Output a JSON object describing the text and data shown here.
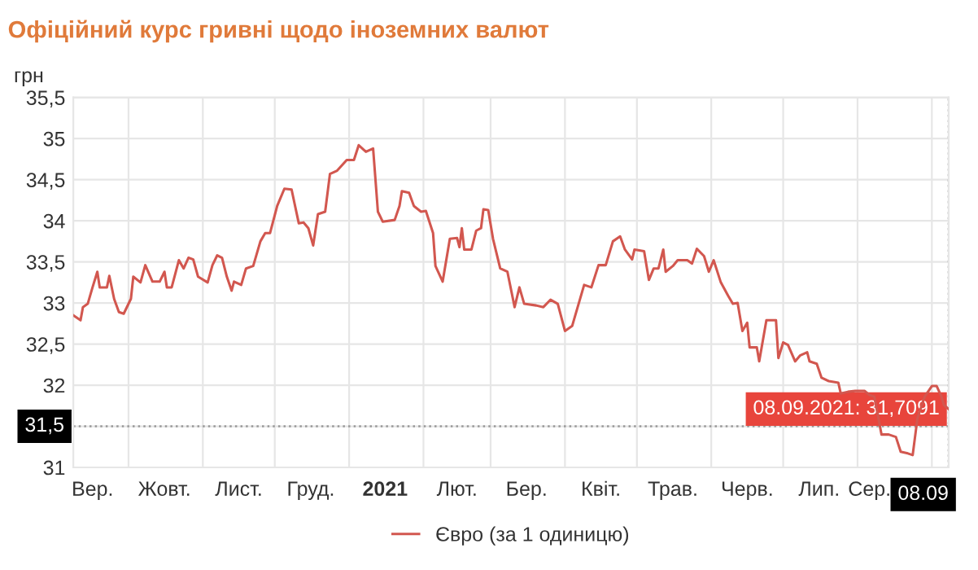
{
  "chart_data": {
    "type": "line",
    "title": "Офіційний курс гривні щодо іноземних валют",
    "ylabel": "грн",
    "xlim": [
      "2020-09-08",
      "2021-09-08"
    ],
    "ylim": [
      31,
      35.5
    ],
    "yticks": [
      31,
      {
        "value": 31.5,
        "label": "31,5"
      },
      32,
      {
        "value": 32.5,
        "label": "32,5"
      },
      33,
      {
        "value": 33.5,
        "label": "33,5"
      },
      34,
      {
        "value": 34.5,
        "label": "34,5"
      },
      35,
      {
        "value": 35.5,
        "label": "35,5"
      }
    ],
    "xticks": [
      {
        "value": "2020-10-01",
        "label": null
      },
      {
        "value": "2020-11-01",
        "label": null
      },
      {
        "value": "2020-12-01",
        "label": null
      },
      {
        "value": "2021-01-01",
        "label": null
      },
      {
        "value": "2021-02-01",
        "label": null
      },
      {
        "value": "2021-03-01",
        "label": null
      },
      {
        "value": "2021-04-01",
        "label": null
      },
      {
        "value": "2021-05-01",
        "label": null
      },
      {
        "value": "2021-06-01",
        "label": null
      },
      {
        "value": "2021-07-01",
        "label": null
      },
      {
        "value": "2021-08-01",
        "label": null
      },
      {
        "value": "2021-09-01",
        "label": null
      },
      {
        "value": "2020-09-16",
        "label": "Вер."
      },
      {
        "value": "2020-10-16",
        "label": "Жовт."
      },
      {
        "value": "2020-11-16",
        "label": "Лист."
      },
      {
        "value": "2020-12-16",
        "label": "Груд."
      },
      {
        "value": "2021-01-16",
        "label": "2021"
      },
      {
        "value": "2021-02-15",
        "label": "Лют."
      },
      {
        "value": "2021-03-16",
        "label": "Бер."
      },
      {
        "value": "2021-04-16",
        "label": "Квіт."
      },
      {
        "value": "2021-05-16",
        "label": "Трав."
      },
      {
        "value": "2021-06-16",
        "label": "Черв."
      },
      {
        "value": "2021-07-16",
        "label": "Лип."
      },
      {
        "value": "2021-08-06",
        "label": "Сер."
      },
      {
        "value": "2021-09-08",
        "label": "08.09"
      }
    ],
    "grid": true,
    "legend": "bottom",
    "marker": "none",
    "line_style": "solid",
    "series": [
      {
        "name": "Євро (за 1 одиницю)",
        "color": "#d2574f",
        "x": [
          "2020-09-08",
          "2020-09-11",
          "2020-09-12",
          "2020-09-14",
          "2020-09-16",
          "2020-09-18",
          "2020-09-19",
          "2020-09-22",
          "2020-09-23",
          "2020-09-25",
          "2020-09-27",
          "2020-09-29",
          "2020-10-02",
          "2020-10-03",
          "2020-10-06",
          "2020-10-08",
          "2020-10-11",
          "2020-10-14",
          "2020-10-16",
          "2020-10-17",
          "2020-10-19",
          "2020-10-22",
          "2020-10-24",
          "2020-10-26",
          "2020-10-28",
          "2020-10-30",
          "2020-11-03",
          "2020-11-05",
          "2020-11-07",
          "2020-11-09",
          "2020-11-11",
          "2020-11-13",
          "2020-11-14",
          "2020-11-17",
          "2020-11-19",
          "2020-11-22",
          "2020-11-25",
          "2020-11-27",
          "2020-11-29",
          "2020-12-02",
          "2020-12-05",
          "2020-12-08",
          "2020-12-11",
          "2020-12-13",
          "2020-12-15",
          "2020-12-17",
          "2020-12-19",
          "2020-12-22",
          "2020-12-24",
          "2020-12-27",
          "2020-12-31",
          "2021-01-03",
          "2021-01-05",
          "2021-01-08",
          "2021-01-11",
          "2021-01-13",
          "2021-01-15",
          "2021-01-20",
          "2021-01-22",
          "2021-01-23",
          "2021-01-26",
          "2021-01-28",
          "2021-01-31",
          "2021-02-02",
          "2021-02-05",
          "2021-02-06",
          "2021-02-09",
          "2021-02-12",
          "2021-02-15",
          "2021-02-16",
          "2021-02-17",
          "2021-02-18",
          "2021-02-21",
          "2021-02-23",
          "2021-02-25",
          "2021-02-26",
          "2021-02-28",
          "2021-03-02",
          "2021-03-05",
          "2021-03-08",
          "2021-03-11",
          "2021-03-13",
          "2021-03-15",
          "2021-03-20",
          "2021-03-23",
          "2021-03-26",
          "2021-03-29",
          "2021-04-01",
          "2021-04-04",
          "2021-04-09",
          "2021-04-12",
          "2021-04-15",
          "2021-04-18",
          "2021-04-21",
          "2021-04-24",
          "2021-04-26",
          "2021-04-29",
          "2021-04-30",
          "2021-05-04",
          "2021-05-06",
          "2021-05-08",
          "2021-05-10",
          "2021-05-12",
          "2021-05-13",
          "2021-05-16",
          "2021-05-18",
          "2021-05-22",
          "2021-05-24",
          "2021-05-26",
          "2021-05-29",
          "2021-05-31",
          "2021-06-02",
          "2021-06-05",
          "2021-06-08",
          "2021-06-10",
          "2021-06-12",
          "2021-06-14",
          "2021-06-16",
          "2021-06-17",
          "2021-06-20",
          "2021-06-21",
          "2021-06-24",
          "2021-06-28",
          "2021-06-29",
          "2021-07-01",
          "2021-07-03",
          "2021-07-06",
          "2021-07-08",
          "2021-07-11",
          "2021-07-12",
          "2021-07-15",
          "2021-07-17",
          "2021-07-20",
          "2021-07-24",
          "2021-07-25",
          "2021-07-28",
          "2021-07-31",
          "2021-08-04",
          "2021-08-06",
          "2021-08-08",
          "2021-08-11",
          "2021-08-14",
          "2021-08-17",
          "2021-08-19",
          "2021-08-22",
          "2021-08-24",
          "2021-08-26",
          "2021-08-29",
          "2021-09-01",
          "2021-09-03",
          "2021-09-05",
          "2021-09-06",
          "2021-09-08"
        ],
        "values": [
          32.85,
          32.79,
          32.95,
          32.99,
          33.19,
          33.38,
          33.19,
          33.19,
          33.33,
          33.05,
          32.89,
          32.87,
          33.05,
          33.32,
          33.25,
          33.46,
          33.26,
          33.26,
          33.38,
          33.19,
          33.19,
          33.52,
          33.42,
          33.55,
          33.53,
          33.32,
          33.25,
          33.46,
          33.58,
          33.55,
          33.32,
          33.15,
          33.26,
          33.22,
          33.42,
          33.45,
          33.75,
          33.85,
          33.85,
          34.18,
          34.39,
          34.38,
          33.97,
          33.98,
          33.91,
          33.7,
          34.08,
          34.11,
          34.57,
          34.61,
          34.74,
          34.74,
          34.92,
          34.84,
          34.88,
          34.11,
          33.99,
          34.01,
          34.18,
          34.36,
          34.34,
          34.18,
          34.11,
          34.12,
          33.85,
          33.45,
          33.26,
          33.78,
          33.79,
          33.68,
          33.91,
          33.65,
          33.65,
          33.88,
          33.91,
          34.14,
          34.13,
          33.78,
          33.42,
          33.38,
          32.95,
          33.19,
          32.99,
          32.97,
          32.95,
          33.04,
          32.99,
          32.66,
          32.72,
          33.22,
          33.19,
          33.46,
          33.46,
          33.75,
          33.81,
          33.65,
          33.53,
          33.65,
          33.63,
          33.28,
          33.42,
          33.42,
          33.65,
          33.38,
          33.45,
          33.52,
          33.52,
          33.48,
          33.66,
          33.57,
          33.38,
          33.52,
          33.25,
          33.09,
          32.99,
          33.0,
          32.66,
          32.76,
          32.46,
          32.46,
          32.29,
          32.79,
          32.79,
          32.33,
          32.52,
          32.49,
          32.29,
          32.36,
          32.4,
          32.29,
          32.26,
          32.09,
          32.05,
          32.03,
          31.9,
          31.92,
          31.93,
          31.93,
          31.88,
          31.86,
          31.4,
          31.4,
          31.37,
          31.19,
          31.17,
          31.15,
          31.6,
          31.86,
          31.99,
          31.99,
          31.86,
          31.76,
          31.7091
        ]
      }
    ],
    "ref_lines": [
      {
        "axis": "y",
        "value": 31.5,
        "label": "31,5",
        "color": "#999999",
        "line_style": "dotted"
      },
      {
        "axis": "x",
        "value": "2021-09-08",
        "color": "#999999",
        "line_style": "dotted"
      }
    ],
    "annotations": [
      {
        "text": "08.09.2021: 31,7091",
        "x": "2021-09-08",
        "y": 31.7091
      }
    ]
  }
}
